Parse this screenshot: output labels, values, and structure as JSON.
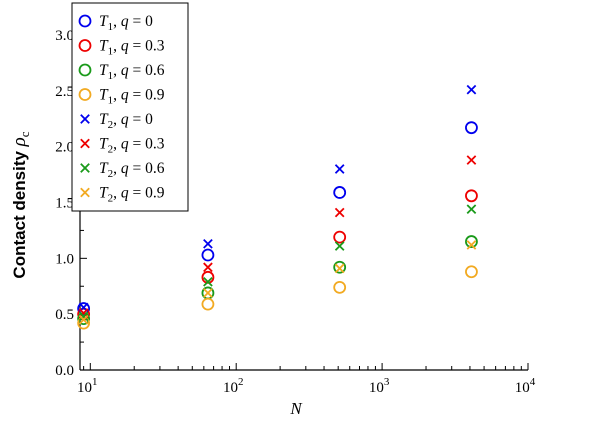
{
  "chart_data": {
    "type": "scatter",
    "xscale": "log",
    "xlim": [
      8.5,
      10000
    ],
    "ylim": [
      0.0,
      3.0
    ],
    "xlabel": "N",
    "ylabel_text": "Contact density ",
    "ylabel_symbol": "ρ",
    "ylabel_sub": "c",
    "x_ticks": [
      {
        "value": 10,
        "base": "10",
        "exp": "1"
      },
      {
        "value": 100,
        "base": "10",
        "exp": "2"
      },
      {
        "value": 1000,
        "base": "10",
        "exp": "3"
      },
      {
        "value": 10000,
        "base": "10",
        "exp": "4"
      }
    ],
    "y_ticks": [
      {
        "value": 0.0,
        "label": "0.0"
      },
      {
        "value": 0.5,
        "label": "0.5"
      },
      {
        "value": 1.0,
        "label": "1.0"
      },
      {
        "value": 1.5,
        "label": "1.5"
      },
      {
        "value": 2.0,
        "label": "2.0"
      },
      {
        "value": 2.5,
        "label": "2.5"
      },
      {
        "value": 3.0,
        "label": "3.0"
      }
    ],
    "grid": false,
    "legend_position": "top-left",
    "series": [
      {
        "name_T": "T",
        "name_sub": "1",
        "name_q": "0",
        "marker": "circle",
        "color": "#0000ee",
        "x": [
          9,
          64,
          512,
          4096
        ],
        "y": [
          0.55,
          1.03,
          1.59,
          2.17
        ]
      },
      {
        "name_T": "T",
        "name_sub": "1",
        "name_q": "0.3",
        "marker": "circle",
        "color": "#ee0000",
        "x": [
          9,
          64,
          512,
          4096
        ],
        "y": [
          0.5,
          0.83,
          1.19,
          1.56
        ]
      },
      {
        "name_T": "T",
        "name_sub": "1",
        "name_q": "0.6",
        "marker": "circle",
        "color": "#1a9a1a",
        "x": [
          9,
          64,
          512,
          4096
        ],
        "y": [
          0.46,
          0.69,
          0.92,
          1.15
        ]
      },
      {
        "name_T": "T",
        "name_sub": "1",
        "name_q": "0.9",
        "marker": "circle",
        "color": "#f2aa22",
        "x": [
          9,
          64,
          512,
          4096
        ],
        "y": [
          0.42,
          0.59,
          0.74,
          0.88
        ]
      },
      {
        "name_T": "T",
        "name_sub": "2",
        "name_q": "0",
        "marker": "cross",
        "color": "#0000ee",
        "x": [
          9,
          64,
          512,
          4096
        ],
        "y": [
          0.56,
          1.13,
          1.8,
          2.51
        ]
      },
      {
        "name_T": "T",
        "name_sub": "2",
        "name_q": "0.3",
        "marker": "cross",
        "color": "#ee0000",
        "x": [
          9,
          64,
          512,
          4096
        ],
        "y": [
          0.51,
          0.92,
          1.41,
          1.88
        ]
      },
      {
        "name_T": "T",
        "name_sub": "2",
        "name_q": "0.6",
        "marker": "cross",
        "color": "#1a9a1a",
        "x": [
          9,
          64,
          512,
          4096
        ],
        "y": [
          0.48,
          0.79,
          1.11,
          1.44
        ]
      },
      {
        "name_T": "T",
        "name_sub": "2",
        "name_q": "0.9",
        "marker": "cross",
        "color": "#f2aa22",
        "x": [
          9,
          64,
          512,
          4096
        ],
        "y": [
          0.45,
          0.69,
          0.91,
          1.12
        ]
      }
    ]
  }
}
